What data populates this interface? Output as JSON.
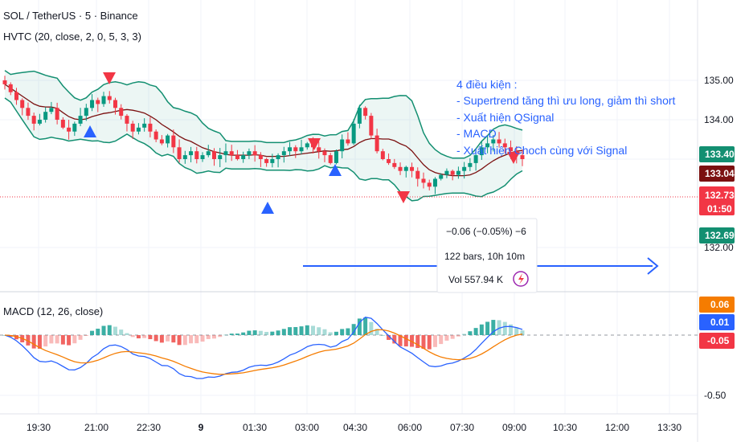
{
  "header": {
    "symbol_title": "SOL / TetherUS · 5 · Binance",
    "indicator_title": "HVTC (20, close, 2, 0, 5, 3, 3)"
  },
  "annotation": {
    "lines": [
      "4 điều kiện :",
      "- Supertrend tăng thì ưu long, giảm thì short",
      "- Xuất hiện QSignal",
      "- MACD",
      "- Xuất hiện Choch cùng với Signal"
    ]
  },
  "measure_tooltip": {
    "change": "−0.06 (−0.05%) −6",
    "bars": "122 bars, 10h 10m",
    "volume": "Vol 557.94 K"
  },
  "price_axis": {
    "ticks": [
      "135.00",
      "134.00",
      "133.00",
      "132.00"
    ],
    "badges": [
      {
        "label": "133.40",
        "color": "#138f71"
      },
      {
        "label": "133.04",
        "color": "#7b1010"
      },
      {
        "label": "132.73",
        "color": "#f23645"
      },
      {
        "label": "01:50",
        "color": "#f23645"
      },
      {
        "label": "132.69",
        "color": "#138f71"
      }
    ]
  },
  "macd": {
    "title": "MACD (12, 26, close)",
    "ticks": [
      "-0.50"
    ],
    "badges": [
      {
        "label": "0.06",
        "color": "#f57c00"
      },
      {
        "label": "0.01",
        "color": "#2962ff"
      },
      {
        "label": "-0.05",
        "color": "#f23645"
      }
    ]
  },
  "time_axis": {
    "labels": [
      "19:30",
      "21:00",
      "22:30",
      "9",
      "01:30",
      "03:00",
      "04:30",
      "06:00",
      "07:30",
      "09:00",
      "10:30",
      "12:00",
      "13:30"
    ]
  },
  "colors": {
    "up": "#089981",
    "down": "#f23645",
    "band": "#138f71",
    "basis": "#7b1010",
    "signal_up": "#2962ff",
    "signal_down": "#f23645",
    "macd_line": "#2962ff",
    "signal_line": "#f57c00"
  },
  "chart_data": [
    {
      "type": "candlestick",
      "title": "SOL / TetherUS · 5 · Binance",
      "y_range": [
        131.7,
        135.4
      ],
      "series": [
        {
          "name": "HVTC (20, close, 2, 0, 5, 3, 3)"
        }
      ],
      "approx_close": [
        134.9,
        134.7,
        134.5,
        134.3,
        134.1,
        133.9,
        134.0,
        134.2,
        134.3,
        134.0,
        133.8,
        133.7,
        133.9,
        134.1,
        134.3,
        134.5,
        134.4,
        134.6,
        134.5,
        134.3,
        134.1,
        133.9,
        133.7,
        133.8,
        133.9,
        133.7,
        133.5,
        133.4,
        133.6,
        133.3,
        133.0,
        133.1,
        133.2,
        133.0,
        133.1,
        133.2,
        133.0,
        133.1,
        133.2,
        133.1,
        133.0,
        133.1,
        133.2,
        133.1,
        133.0,
        132.9,
        133.0,
        133.1,
        133.2,
        133.3,
        133.2,
        133.3,
        133.4,
        133.3,
        133.2,
        133.1,
        132.9,
        133.2,
        133.5,
        133.4,
        133.9,
        134.3,
        134.1,
        133.6,
        133.2,
        133.0,
        132.9,
        132.8,
        132.7,
        132.8,
        132.7,
        132.5,
        132.4,
        132.3,
        132.5,
        132.6,
        132.7,
        132.6,
        132.7,
        132.8,
        132.9,
        133.1,
        133.3,
        133.4,
        133.5,
        133.4,
        133.3,
        133.2,
        133.1,
        133.0
      ]
    },
    {
      "type": "line",
      "title": "MACD (12, 26, close)",
      "series": [
        {
          "name": "MACD",
          "last": 0.01
        },
        {
          "name": "Signal",
          "last": 0.06
        },
        {
          "name": "Histogram",
          "last": -0.05
        }
      ]
    }
  ]
}
